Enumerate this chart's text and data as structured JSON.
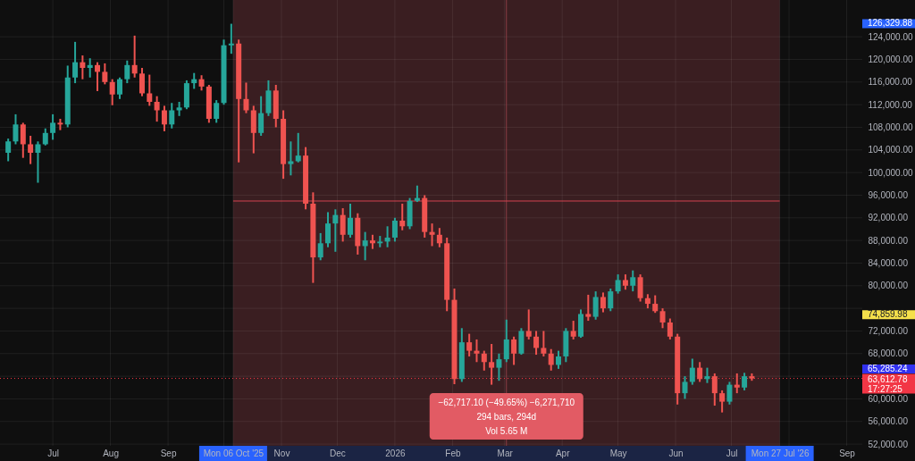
{
  "chart_data": {
    "type": "candlestick",
    "x": [
      "2025-06-07",
      "2025-06-11",
      "2025-06-15",
      "2025-06-19",
      "2025-06-23",
      "2025-06-27",
      "2025-07-01",
      "2025-07-05",
      "2025-07-09",
      "2025-07-13",
      "2025-07-17",
      "2025-07-21",
      "2025-07-25",
      "2025-07-29",
      "2025-08-02",
      "2025-08-06",
      "2025-08-10",
      "2025-08-14",
      "2025-08-18",
      "2025-08-22",
      "2025-08-26",
      "2025-08-30",
      "2025-09-03",
      "2025-09-07",
      "2025-09-11",
      "2025-09-15",
      "2025-09-19",
      "2025-09-23",
      "2025-09-27",
      "2025-10-01",
      "2025-10-05",
      "2025-10-09",
      "2025-10-13",
      "2025-10-17",
      "2025-10-21",
      "2025-10-25",
      "2025-10-29",
      "2025-11-02",
      "2025-11-06",
      "2025-11-10",
      "2025-11-14",
      "2025-11-18",
      "2025-11-22",
      "2025-11-26",
      "2025-11-30",
      "2025-12-04",
      "2025-12-08",
      "2025-12-12",
      "2025-12-16",
      "2025-12-20",
      "2025-12-24",
      "2025-12-28",
      "2026-01-01",
      "2026-01-05",
      "2026-01-09",
      "2026-01-13",
      "2026-01-17",
      "2026-01-21",
      "2026-01-25",
      "2026-01-29",
      "2026-02-02",
      "2026-02-06",
      "2026-02-10",
      "2026-02-14",
      "2026-02-18",
      "2026-02-22",
      "2026-02-26",
      "2026-03-02",
      "2026-03-06",
      "2026-03-10",
      "2026-03-14",
      "2026-03-18",
      "2026-03-22",
      "2026-03-26",
      "2026-03-30",
      "2026-04-03",
      "2026-04-07",
      "2026-04-11",
      "2026-04-15",
      "2026-04-19",
      "2026-04-23",
      "2026-04-27",
      "2026-05-01",
      "2026-05-05",
      "2026-05-09",
      "2026-05-13",
      "2026-05-17",
      "2026-05-21",
      "2026-05-25",
      "2026-05-29",
      "2026-06-02",
      "2026-06-06",
      "2026-06-10",
      "2026-06-14",
      "2026-06-18",
      "2026-06-22",
      "2026-06-26",
      "2026-06-30",
      "2026-07-04",
      "2026-07-08",
      "2026-07-12"
    ],
    "ohlc": [
      [
        103500,
        106000,
        102000,
        105500
      ],
      [
        105500,
        110300,
        105000,
        108500
      ],
      [
        108500,
        108800,
        102600,
        105000
      ],
      [
        105000,
        106500,
        101500,
        103500
      ],
      [
        103500,
        105500,
        98200,
        105000
      ],
      [
        105000,
        107800,
        104800,
        107000
      ],
      [
        107000,
        110300,
        105800,
        108800
      ],
      [
        108800,
        109500,
        107500,
        108500
      ],
      [
        108500,
        118900,
        108000,
        116800
      ],
      [
        116800,
        123100,
        115800,
        119500
      ],
      [
        119500,
        120700,
        116500,
        118500
      ],
      [
        118500,
        120200,
        116800,
        119000
      ],
      [
        119000,
        119500,
        114400,
        117800
      ],
      [
        117800,
        119300,
        115600,
        116000
      ],
      [
        116000,
        116500,
        111900,
        113800
      ],
      [
        113800,
        116800,
        113000,
        116500
      ],
      [
        116500,
        119800,
        115800,
        119000
      ],
      [
        119000,
        124200,
        116800,
        117500
      ],
      [
        117500,
        118500,
        113500,
        114000
      ],
      [
        114000,
        117300,
        111800,
        112500
      ],
      [
        112500,
        113500,
        109000,
        111000
      ],
      [
        111000,
        111800,
        107300,
        108500
      ],
      [
        108500,
        112300,
        107800,
        111000
      ],
      [
        111000,
        112500,
        110000,
        111500
      ],
      [
        111500,
        116300,
        111200,
        115800
      ],
      [
        115800,
        117600,
        114800,
        116500
      ],
      [
        116500,
        117200,
        114500,
        115200
      ],
      [
        115200,
        115500,
        108800,
        109500
      ],
      [
        109500,
        112800,
        108800,
        112300
      ],
      [
        112300,
        123500,
        112000,
        122500
      ],
      [
        122500,
        126300,
        121000,
        122800
      ],
      [
        122800,
        123500,
        101800,
        113000
      ],
      [
        113000,
        115900,
        110500,
        111000
      ],
      [
        111000,
        111800,
        103400,
        107000
      ],
      [
        107000,
        113500,
        106500,
        110500
      ],
      [
        110500,
        116300,
        110000,
        114500
      ],
      [
        114500,
        115500,
        108000,
        109500
      ],
      [
        109500,
        111000,
        98900,
        101500
      ],
      [
        101500,
        105500,
        99500,
        102000
      ],
      [
        102000,
        107000,
        101800,
        103000
      ],
      [
        103000,
        104500,
        93500,
        94500
      ],
      [
        94500,
        96500,
        80500,
        85000
      ],
      [
        85000,
        89300,
        84500,
        87500
      ],
      [
        87500,
        93000,
        86800,
        91000
      ],
      [
        91000,
        93500,
        86000,
        92500
      ],
      [
        92500,
        93700,
        87800,
        89000
      ],
      [
        89000,
        94500,
        88500,
        92000
      ],
      [
        92000,
        92800,
        85500,
        87000
      ],
      [
        87000,
        89500,
        84500,
        88000
      ],
      [
        88000,
        89000,
        86500,
        87500
      ],
      [
        87500,
        88800,
        86800,
        87800
      ],
      [
        87800,
        90500,
        86800,
        88500
      ],
      [
        88500,
        92000,
        87800,
        91500
      ],
      [
        91500,
        94500,
        89800,
        90500
      ],
      [
        90500,
        95500,
        90000,
        95000
      ],
      [
        95000,
        97700,
        94800,
        95500
      ],
      [
        95500,
        96000,
        88500,
        89500
      ],
      [
        89500,
        91000,
        87000,
        89000
      ],
      [
        89000,
        90200,
        86800,
        87500
      ],
      [
        87500,
        88500,
        75500,
        77500
      ],
      [
        77500,
        79500,
        62600,
        63500
      ],
      [
        63500,
        72500,
        63000,
        70000
      ],
      [
        70000,
        71500,
        67500,
        68500
      ],
      [
        68500,
        70500,
        66500,
        68000
      ],
      [
        68000,
        68500,
        65000,
        66500
      ],
      [
        66500,
        69700,
        62500,
        65500
      ],
      [
        65500,
        68000,
        63200,
        67000
      ],
      [
        67000,
        74000,
        66500,
        70500
      ],
      [
        70500,
        71000,
        66000,
        68000
      ],
      [
        68000,
        72500,
        67800,
        72000
      ],
      [
        72000,
        75800,
        70500,
        71000
      ],
      [
        71000,
        72000,
        67800,
        69000
      ],
      [
        69000,
        72000,
        67500,
        68000
      ],
      [
        68000,
        68800,
        65000,
        66000
      ],
      [
        66000,
        68500,
        65300,
        67500
      ],
      [
        67500,
        72500,
        66500,
        72000
      ],
      [
        72000,
        73800,
        70500,
        71000
      ],
      [
        71000,
        75800,
        70800,
        75000
      ],
      [
        75000,
        78400,
        73800,
        74500
      ],
      [
        74500,
        79000,
        74000,
        78000
      ],
      [
        78000,
        78800,
        75300,
        76000
      ],
      [
        76000,
        79500,
        75500,
        79000
      ],
      [
        79000,
        82000,
        78600,
        81000
      ],
      [
        81000,
        82000,
        79300,
        80000
      ],
      [
        80000,
        82700,
        79000,
        81500
      ],
      [
        81500,
        82000,
        77200,
        77800
      ],
      [
        77800,
        78500,
        76000,
        76800
      ],
      [
        76800,
        78300,
        75200,
        75500
      ],
      [
        75500,
        76000,
        72500,
        73500
      ],
      [
        73500,
        74200,
        70500,
        71000
      ],
      [
        71000,
        71500,
        59000,
        61000
      ],
      [
        61000,
        64000,
        60000,
        63000
      ],
      [
        63000,
        67100,
        62500,
        65500
      ],
      [
        65500,
        66500,
        63000,
        63500
      ],
      [
        63500,
        65500,
        62800,
        64000
      ],
      [
        64000,
        64500,
        58800,
        61000
      ],
      [
        61000,
        61500,
        57600,
        59500
      ],
      [
        59500,
        63000,
        59000,
        62500
      ],
      [
        62500,
        64500,
        61000,
        62000
      ],
      [
        62000,
        64600,
        61500,
        64000
      ],
      [
        64000,
        64500,
        63200,
        63600
      ]
    ],
    "colors": [
      "#26a69a",
      "#26a69a",
      "#ef5350",
      "#ef5350",
      "#26a69a",
      "#26a69a",
      "#26a69a",
      "#ef5350",
      "#26a69a",
      "#26a69a",
      "#ef5350",
      "#26a69a",
      "#ef5350",
      "#ef5350",
      "#ef5350",
      "#26a69a",
      "#26a69a",
      "#ef5350",
      "#ef5350",
      "#ef5350",
      "#ef5350",
      "#ef5350",
      "#26a69a",
      "#26a69a",
      "#26a69a",
      "#26a69a",
      "#ef5350",
      "#ef5350",
      "#26a69a",
      "#26a69a",
      "#26a69a",
      "#ef5350",
      "#ef5350",
      "#ef5350",
      "#26a69a",
      "#26a69a",
      "#ef5350",
      "#ef5350",
      "#26a69a",
      "#26a69a",
      "#ef5350",
      "#ef5350",
      "#26a69a",
      "#26a69a",
      "#26a69a",
      "#ef5350",
      "#26a69a",
      "#ef5350",
      "#26a69a",
      "#ef5350",
      "#26a69a",
      "#26a69a",
      "#26a69a",
      "#ef5350",
      "#26a69a",
      "#26a69a",
      "#ef5350",
      "#ef5350",
      "#ef5350",
      "#ef5350",
      "#ef5350",
      "#26a69a",
      "#ef5350",
      "#ef5350",
      "#ef5350",
      "#ef5350",
      "#26a69a",
      "#26a69a",
      "#ef5350",
      "#26a69a",
      "#ef5350",
      "#ef5350",
      "#ef5350",
      "#ef5350",
      "#26a69a",
      "#26a69a",
      "#ef5350",
      "#26a69a",
      "#ef5350",
      "#26a69a",
      "#ef5350",
      "#26a69a",
      "#26a69a",
      "#ef5350",
      "#26a69a",
      "#ef5350",
      "#ef5350",
      "#ef5350",
      "#ef5350",
      "#ef5350",
      "#ef5350",
      "#26a69a",
      "#26a69a",
      "#ef5350",
      "#26a69a",
      "#ef5350",
      "#ef5350",
      "#26a69a",
      "#ef5350",
      "#26a69a",
      "#ef5350"
    ],
    "xlim": [
      "2025-06-05",
      "2026-09-07"
    ],
    "xticks": [
      {
        "value": "2025-07-01",
        "label": "Jul"
      },
      {
        "value": "2025-08-01",
        "label": "Aug"
      },
      {
        "value": "2025-09-01",
        "label": "Sep"
      },
      {
        "value": "2025-10-01",
        "label": null
      },
      {
        "value": "2025-10-06",
        "label": "Mon 06 Oct '25"
      },
      {
        "value": "2025-11-01",
        "label": "Nov"
      },
      {
        "value": "2025-12-01",
        "label": "Dec"
      },
      {
        "value": "2026-01-01",
        "label": "2026"
      },
      {
        "value": "2026-02-01",
        "label": "Feb"
      },
      {
        "value": "2026-03-01",
        "label": "Mar"
      },
      {
        "value": "2026-04-01",
        "label": "Apr"
      },
      {
        "value": "2026-05-01",
        "label": "May"
      },
      {
        "value": "2026-06-01",
        "label": "Jun"
      },
      {
        "value": "2026-07-01",
        "label": "Jul"
      },
      {
        "value": "2026-07-27",
        "label": "Mon 27 Jul '26"
      },
      {
        "value": "2026-08-01",
        "label": null
      },
      {
        "value": "2026-09-01",
        "label": "Sep"
      }
    ],
    "ylim": [
      51700,
      130500
    ],
    "yticks": [
      {
        "value": 52000,
        "label": "52,000.00"
      },
      {
        "value": 56000,
        "label": "56,000.00"
      },
      {
        "value": 60000,
        "label": "60,000.00"
      },
      {
        "value": 64000,
        "label": null
      },
      {
        "value": 68000,
        "label": "68,000.00"
      },
      {
        "value": 72000,
        "label": "72,000.00"
      },
      {
        "value": 76000,
        "label": null
      },
      {
        "value": 80000,
        "label": "80,000.00"
      },
      {
        "value": 84000,
        "label": "84,000.00"
      },
      {
        "value": 88000,
        "label": "88,000.00"
      },
      {
        "value": 92000,
        "label": "92,000.00"
      },
      {
        "value": 96000,
        "label": "96,000.00"
      },
      {
        "value": 100000,
        "label": "100,000.00"
      },
      {
        "value": 104000,
        "label": "104,000.00"
      },
      {
        "value": 108000,
        "label": "108,000.00"
      },
      {
        "value": 112000,
        "label": "112,000.00"
      },
      {
        "value": 116000,
        "label": "116,000.00"
      },
      {
        "value": 120000,
        "label": "120,000.00"
      },
      {
        "value": 124000,
        "label": "124,000.00"
      }
    ],
    "y2lim": [
      51700,
      130500
    ],
    "y2ticks": [
      {
        "value": 126329.88,
        "label": "126,329.88"
      },
      {
        "value": 74859.98,
        "label": "74,859.98"
      },
      {
        "value": 65285.24,
        "label": "65,285.24"
      }
    ],
    "grid": true,
    "bands": [
      {
        "axis": "x",
        "from": "2025-10-06",
        "to": "2026-07-27",
        "color": "#3a1e21",
        "label": "−62,717.10 (−49.65%) −6,271,710\n294 bars, 294d\nVol 5.65 M"
      }
    ],
    "ref_lines": [
      {
        "axis": "y",
        "value": 63612.78,
        "label": "63,612.78\n17:27:25",
        "color": "#f23645",
        "line_style": "dotted"
      },
      {
        "axis": "x",
        "value": "2026-03-02",
        "color": "#8a3c44"
      },
      {
        "axis": "y",
        "value": 94970,
        "color": "#d3434f"
      }
    ]
  }
}
